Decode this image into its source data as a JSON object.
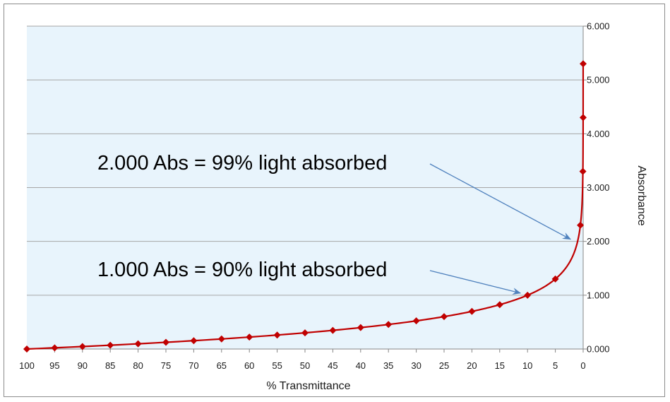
{
  "colors": {
    "plot_background": "#e8f4fc",
    "gridline": "#a6a6a6",
    "series": "#c00000",
    "arrow": "#4f81bd"
  },
  "chart_data": {
    "type": "scatter",
    "title": "",
    "xlabel": "% Transmittance",
    "ylabel": "Absorbance",
    "xlim": [
      100,
      0
    ],
    "ylim": [
      0,
      6
    ],
    "x_ticks": [
      "100",
      "95",
      "90",
      "85",
      "80",
      "75",
      "70",
      "65",
      "60",
      "55",
      "50",
      "45",
      "40",
      "35",
      "30",
      "25",
      "20",
      "15",
      "10",
      "5",
      "0"
    ],
    "y_ticks": [
      "0.000",
      "1.000",
      "2.000",
      "3.000",
      "4.000",
      "5.000",
      "6.000"
    ],
    "y_axis_side": "right",
    "x_reversed": true,
    "grid": true,
    "legend": "none",
    "series": [
      {
        "marker": "diamond",
        "line": "smooth",
        "x": [
          100,
          95,
          90,
          85,
          80,
          75,
          70,
          65,
          60,
          55,
          50,
          45,
          40,
          35,
          30,
          25,
          20,
          15,
          10,
          5,
          0.5,
          0.05,
          0.005,
          0.0005
        ],
        "y": [
          0.0,
          0.022,
          0.046,
          0.071,
          0.097,
          0.125,
          0.155,
          0.187,
          0.222,
          0.26,
          0.301,
          0.347,
          0.398,
          0.456,
          0.523,
          0.602,
          0.699,
          0.824,
          1.0,
          1.301,
          2.301,
          3.301,
          4.301,
          5.301
        ]
      }
    ],
    "annotations": [
      {
        "text": "2.000 Abs = 99% light absorbed",
        "points_to": {
          "x": 1,
          "y": 2.0
        }
      },
      {
        "text": "1.000 Abs = 90% light absorbed",
        "points_to": {
          "x": 10,
          "y": 1.0
        }
      }
    ]
  }
}
